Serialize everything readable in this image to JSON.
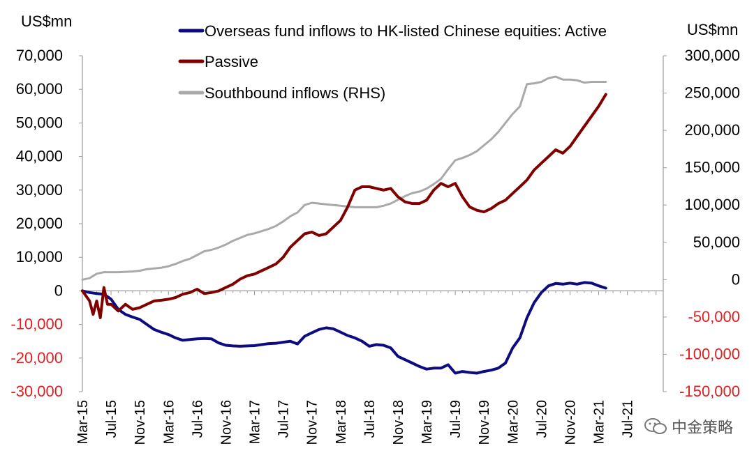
{
  "chart_data": {
    "type": "line",
    "left_unit": "US$mn",
    "right_unit": "US$mn",
    "left_axis": {
      "ylim": [
        -30000,
        70000
      ],
      "ticks": [
        70000,
        60000,
        50000,
        40000,
        30000,
        20000,
        10000,
        0,
        -10000,
        -20000,
        -30000
      ],
      "tick_labels": [
        "70,000",
        "60,000",
        "50,000",
        "40,000",
        "30,000",
        "20,000",
        "10,000",
        "0",
        "-10,000",
        "-20,000",
        "-30,000"
      ],
      "negative_color": "#e02020"
    },
    "right_axis": {
      "ylim": [
        -150000,
        300000
      ],
      "ticks": [
        300000,
        250000,
        200000,
        150000,
        100000,
        50000,
        0,
        -50000,
        -100000,
        -150000
      ],
      "tick_labels": [
        "300,000",
        "250,000",
        "200,000",
        "150,000",
        "100,000",
        "50,000",
        "0",
        "-50,000",
        "-100,000",
        "-150,000"
      ],
      "negative_color": "#e02020"
    },
    "x_axis": {
      "start": "Mar-15",
      "months": 81,
      "tick_step": 4,
      "tick_labels": [
        "Mar-15",
        "Jul-15",
        "Nov-15",
        "Mar-16",
        "Jul-16",
        "Nov-16",
        "Mar-17",
        "Jul-17",
        "Nov-17",
        "Mar-18",
        "Jul-18",
        "Nov-18",
        "Mar-19",
        "Jul-19",
        "Nov-19",
        "Mar-20",
        "Jul-20",
        "Nov-20",
        "Mar-21",
        "Jul-21"
      ]
    },
    "series": [
      {
        "name": "Overseas fund inflows to HK-listed Chinese equities: Active",
        "axis": "left",
        "color": "#0c0c80",
        "points": [
          [
            0,
            0
          ],
          [
            1,
            -500
          ],
          [
            2,
            -800
          ],
          [
            3,
            -1000
          ],
          [
            4,
            -2500
          ],
          [
            5,
            -5500
          ],
          [
            6,
            -7000
          ],
          [
            7,
            -7800
          ],
          [
            8,
            -8500
          ],
          [
            9,
            -10000
          ],
          [
            10,
            -11500
          ],
          [
            11,
            -12300
          ],
          [
            12,
            -13000
          ],
          [
            13,
            -14000
          ],
          [
            14,
            -14700
          ],
          [
            15,
            -14500
          ],
          [
            16,
            -14300
          ],
          [
            17,
            -14200
          ],
          [
            18,
            -14300
          ],
          [
            19,
            -15500
          ],
          [
            20,
            -16200
          ],
          [
            21,
            -16400
          ],
          [
            22,
            -16500
          ],
          [
            23,
            -16400
          ],
          [
            24,
            -16300
          ],
          [
            25,
            -16000
          ],
          [
            26,
            -15700
          ],
          [
            27,
            -15600
          ],
          [
            28,
            -15300
          ],
          [
            29,
            -15000
          ],
          [
            30,
            -15800
          ],
          [
            31,
            -13500
          ],
          [
            32,
            -12500
          ],
          [
            33,
            -11500
          ],
          [
            34,
            -11000
          ],
          [
            35,
            -11300
          ],
          [
            36,
            -12300
          ],
          [
            37,
            -13300
          ],
          [
            38,
            -14000
          ],
          [
            39,
            -15000
          ],
          [
            40,
            -16500
          ],
          [
            41,
            -16000
          ],
          [
            42,
            -16200
          ],
          [
            43,
            -17000
          ],
          [
            44,
            -19500
          ],
          [
            45,
            -20500
          ],
          [
            46,
            -21500
          ],
          [
            47,
            -22500
          ],
          [
            48,
            -23300
          ],
          [
            49,
            -23000
          ],
          [
            50,
            -23000
          ],
          [
            51,
            -22000
          ],
          [
            52,
            -24500
          ],
          [
            53,
            -24000
          ],
          [
            54,
            -24300
          ],
          [
            55,
            -24500
          ],
          [
            56,
            -24000
          ],
          [
            57,
            -23600
          ],
          [
            58,
            -23000
          ],
          [
            59,
            -21500
          ],
          [
            60,
            -17000
          ],
          [
            61,
            -14000
          ],
          [
            62,
            -8000
          ],
          [
            63,
            -3500
          ],
          [
            64,
            -500
          ],
          [
            65,
            1500
          ],
          [
            66,
            2200
          ],
          [
            67,
            2000
          ],
          [
            68,
            2300
          ],
          [
            69,
            2000
          ],
          [
            70,
            2500
          ],
          [
            71,
            2300
          ],
          [
            72,
            1500
          ],
          [
            73,
            800
          ]
        ]
      },
      {
        "name": "Passive",
        "axis": "left",
        "color": "#800000",
        "points": [
          [
            0,
            0
          ],
          [
            1,
            -3000
          ],
          [
            1.5,
            -7000
          ],
          [
            2,
            -3000
          ],
          [
            2.5,
            -8000
          ],
          [
            3,
            1000
          ],
          [
            3.5,
            -4000
          ],
          [
            4,
            -4000
          ],
          [
            5,
            -6000
          ],
          [
            6,
            -4000
          ],
          [
            7,
            -5500
          ],
          [
            8,
            -5000
          ],
          [
            9,
            -4000
          ],
          [
            10,
            -3000
          ],
          [
            11,
            -2800
          ],
          [
            12,
            -2500
          ],
          [
            13,
            -2000
          ],
          [
            14,
            -1000
          ],
          [
            15,
            -500
          ],
          [
            16,
            500
          ],
          [
            17,
            -800
          ],
          [
            18,
            -500
          ],
          [
            19,
            0
          ],
          [
            20,
            1000
          ],
          [
            21,
            2000
          ],
          [
            22,
            3500
          ],
          [
            23,
            4500
          ],
          [
            24,
            5000
          ],
          [
            25,
            6000
          ],
          [
            26,
            7000
          ],
          [
            27,
            8000
          ],
          [
            28,
            10000
          ],
          [
            29,
            13000
          ],
          [
            30,
            15000
          ],
          [
            31,
            17000
          ],
          [
            32,
            17500
          ],
          [
            33,
            16500
          ],
          [
            34,
            17000
          ],
          [
            35,
            19000
          ],
          [
            36,
            21000
          ],
          [
            37,
            25000
          ],
          [
            38,
            30000
          ],
          [
            39,
            31000
          ],
          [
            40,
            31000
          ],
          [
            41,
            30500
          ],
          [
            42,
            30000
          ],
          [
            43,
            30500
          ],
          [
            44,
            28000
          ],
          [
            45,
            26500
          ],
          [
            46,
            26000
          ],
          [
            47,
            26000
          ],
          [
            48,
            27000
          ],
          [
            49,
            30000
          ],
          [
            50,
            32000
          ],
          [
            51,
            31000
          ],
          [
            52,
            32000
          ],
          [
            53,
            28000
          ],
          [
            54,
            25000
          ],
          [
            55,
            24000
          ],
          [
            56,
            23500
          ],
          [
            57,
            24500
          ],
          [
            58,
            26000
          ],
          [
            59,
            27000
          ],
          [
            60,
            29000
          ],
          [
            61,
            31000
          ],
          [
            62,
            33000
          ],
          [
            63,
            36000
          ],
          [
            64,
            38000
          ],
          [
            65,
            40000
          ],
          [
            66,
            42000
          ],
          [
            67,
            41000
          ],
          [
            68,
            43000
          ],
          [
            69,
            46000
          ],
          [
            70,
            49000
          ],
          [
            71,
            52000
          ],
          [
            72,
            55000
          ],
          [
            73,
            58500
          ]
        ]
      },
      {
        "name": "Southbound inflows (RHS)",
        "axis": "right",
        "color": "#a9a9a9",
        "points": [
          [
            0,
            0
          ],
          [
            1,
            2000
          ],
          [
            2,
            8000
          ],
          [
            3,
            10000
          ],
          [
            4,
            10000
          ],
          [
            5,
            10000
          ],
          [
            6,
            10500
          ],
          [
            7,
            11000
          ],
          [
            8,
            12000
          ],
          [
            9,
            14000
          ],
          [
            10,
            15000
          ],
          [
            11,
            16000
          ],
          [
            12,
            18000
          ],
          [
            13,
            21000
          ],
          [
            14,
            25000
          ],
          [
            15,
            28000
          ],
          [
            16,
            33000
          ],
          [
            17,
            38000
          ],
          [
            18,
            40000
          ],
          [
            19,
            43000
          ],
          [
            20,
            47000
          ],
          [
            21,
            52000
          ],
          [
            22,
            56000
          ],
          [
            23,
            60000
          ],
          [
            24,
            62000
          ],
          [
            25,
            65000
          ],
          [
            26,
            68000
          ],
          [
            27,
            72000
          ],
          [
            28,
            78000
          ],
          [
            29,
            85000
          ],
          [
            30,
            90000
          ],
          [
            31,
            100000
          ],
          [
            32,
            103000
          ],
          [
            33,
            102000
          ],
          [
            34,
            101000
          ],
          [
            35,
            100000
          ],
          [
            36,
            99000
          ],
          [
            37,
            98000
          ],
          [
            38,
            97000
          ],
          [
            39,
            97000
          ],
          [
            40,
            97000
          ],
          [
            41,
            97000
          ],
          [
            42,
            99000
          ],
          [
            43,
            102000
          ],
          [
            44,
            107000
          ],
          [
            45,
            112000
          ],
          [
            46,
            116000
          ],
          [
            47,
            118000
          ],
          [
            48,
            122000
          ],
          [
            49,
            128000
          ],
          [
            50,
            135000
          ],
          [
            51,
            148000
          ],
          [
            52,
            160000
          ],
          [
            53,
            163000
          ],
          [
            54,
            167000
          ],
          [
            55,
            172000
          ],
          [
            56,
            180000
          ],
          [
            57,
            188000
          ],
          [
            58,
            198000
          ],
          [
            59,
            210000
          ],
          [
            60,
            222000
          ],
          [
            61,
            232000
          ],
          [
            62,
            262000
          ],
          [
            63,
            263000
          ],
          [
            64,
            265000
          ],
          [
            65,
            270000
          ],
          [
            66,
            272000
          ],
          [
            67,
            268000
          ],
          [
            68,
            268000
          ],
          [
            69,
            267000
          ],
          [
            70,
            264000
          ],
          [
            71,
            265000
          ],
          [
            72,
            265000
          ],
          [
            73,
            265000
          ]
        ]
      }
    ]
  },
  "watermark": {
    "text": "中金策略"
  }
}
